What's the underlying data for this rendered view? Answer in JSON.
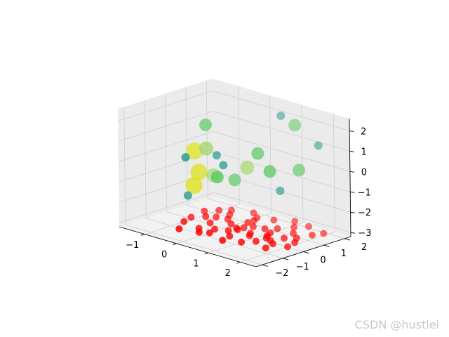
{
  "watermark": "CSDN @hustlei",
  "chart_data": {
    "type": "scatter",
    "projection": "3d",
    "grid": true,
    "xlim": [
      -1.8,
      2.5
    ],
    "ylim": [
      -2.3,
      2.3
    ],
    "zlim": [
      -3.2,
      2.6
    ],
    "x_ticks": [
      -1,
      0,
      1,
      2
    ],
    "y_ticks": [
      -2,
      -1,
      0,
      1,
      2
    ],
    "z_ticks": [
      -3,
      -2,
      -1,
      0,
      1,
      2
    ],
    "x_tick_labels": [
      "−1",
      "0",
      "1",
      "2"
    ],
    "y_tick_labels": [
      "−2",
      "−1",
      "0",
      "1",
      "2"
    ],
    "z_tick_labels": [
      "−3",
      "−2",
      "−1",
      "0",
      "1",
      "2"
    ],
    "colors": {
      "red": "#ff0000",
      "teal": "#2a9d8f",
      "green": "#5cc863",
      "lightgreen": "#9fd86b",
      "yellow": "#dde318",
      "pane": "#f2f2f2",
      "pane_side": "#ebebeb",
      "grid": "#cfcfcf"
    },
    "series": [
      {
        "color": "#ff0000",
        "marker_size": 5,
        "points": [
          [
            -0.8,
            -0.7,
            -3
          ],
          [
            -0.5,
            -1.4,
            -3
          ],
          [
            0.2,
            -1.0,
            -3
          ],
          [
            -0.2,
            0.5,
            -3
          ],
          [
            0.5,
            0.2,
            -3
          ],
          [
            0.9,
            0.6,
            -3
          ],
          [
            1.4,
            -0.1,
            -3
          ],
          [
            1.9,
            -0.9,
            -3
          ],
          [
            1.3,
            1.4,
            -3
          ],
          [
            0.3,
            1.0,
            -3
          ],
          [
            -0.3,
            -0.2,
            -3
          ],
          [
            1.0,
            -0.3,
            -3
          ],
          [
            0.1,
            0.2,
            -3
          ],
          [
            -1.0,
            0.6,
            -3
          ],
          [
            0.7,
            -0.8,
            -3
          ],
          [
            1.6,
            0.9,
            -3
          ],
          [
            2.1,
            0.2,
            -3
          ],
          [
            -0.6,
            1.3,
            -3
          ],
          [
            0.4,
            -0.4,
            -3
          ],
          [
            1.1,
            0.9,
            -3
          ],
          [
            0.0,
            -1.2,
            -3
          ],
          [
            1.8,
            -0.4,
            -3
          ],
          [
            -0.4,
            0.9,
            -3
          ],
          [
            0.6,
            1.5,
            -3
          ],
          [
            1.5,
            1.8,
            -3
          ],
          [
            2.0,
            1.2,
            -3
          ],
          [
            -0.9,
            -0.2,
            -3
          ],
          [
            0.3,
            0.7,
            -3
          ],
          [
            1.2,
            0.4,
            -3
          ],
          [
            0.8,
            -1.3,
            -3
          ],
          [
            -0.2,
            -0.9,
            -3
          ],
          [
            1.7,
            0.3,
            -3
          ],
          [
            0.5,
            -0.1,
            -3
          ],
          [
            2.2,
            -0.3,
            -3
          ],
          [
            -0.7,
            0.2,
            -3
          ],
          [
            1.0,
            1.9,
            -3
          ],
          [
            0.1,
            -0.6,
            -3
          ],
          [
            1.4,
            -0.6,
            -3
          ],
          [
            -0.1,
            1.6,
            -3
          ],
          [
            0.9,
            -0.1,
            -3
          ],
          [
            1.9,
            0.6,
            -3
          ],
          [
            0.6,
            0.5,
            -3
          ],
          [
            -0.5,
            0.4,
            -3
          ],
          [
            1.2,
            -1.0,
            -3
          ],
          [
            2.1,
            1.6,
            -3
          ],
          [
            0.2,
            1.3,
            -3
          ],
          [
            1.6,
            -0.2,
            -3
          ],
          [
            -0.8,
            1.0,
            -3
          ],
          [
            0.4,
            0.0,
            -3
          ],
          [
            1.3,
            0.1,
            -3
          ]
        ]
      },
      {
        "color": "#2a9d8f",
        "marker_size": 6,
        "points": [
          [
            0.6,
            1.9,
            2.0
          ],
          [
            1.4,
            0.6,
            -0.9
          ],
          [
            -0.4,
            -1.2,
            0.5
          ],
          [
            -0.6,
            -0.8,
            -1.6
          ],
          [
            1.9,
            1.7,
            1.2
          ],
          [
            0.2,
            -0.3,
            0.1
          ],
          [
            -0.2,
            0.0,
            0.3
          ]
        ]
      },
      {
        "color": "#5cc863",
        "marker_size": 9,
        "points": [
          [
            1.1,
            1.8,
            1.8
          ],
          [
            -0.8,
            0.4,
            1.4
          ],
          [
            0.9,
            0.3,
            0.8
          ],
          [
            0.4,
            -0.9,
            -0.2
          ],
          [
            1.8,
            0.9,
            0.2
          ],
          [
            1.6,
            -0.2,
            0.4
          ],
          [
            0.1,
            0.4,
            -0.9
          ]
        ]
      },
      {
        "color": "#9fd86b",
        "marker_size": 10,
        "points": [
          [
            -0.2,
            -0.5,
            0.8
          ],
          [
            -0.7,
            0.6,
            -1.1
          ],
          [
            0.3,
            0.7,
            -0.3
          ]
        ]
      },
      {
        "color": "#dde318",
        "marker_size": 12,
        "points": [
          [
            -0.9,
            0.0,
            0.2
          ],
          [
            -0.6,
            -0.5,
            -1.2
          ],
          [
            -0.9,
            0.2,
            -0.9
          ]
        ]
      }
    ]
  }
}
